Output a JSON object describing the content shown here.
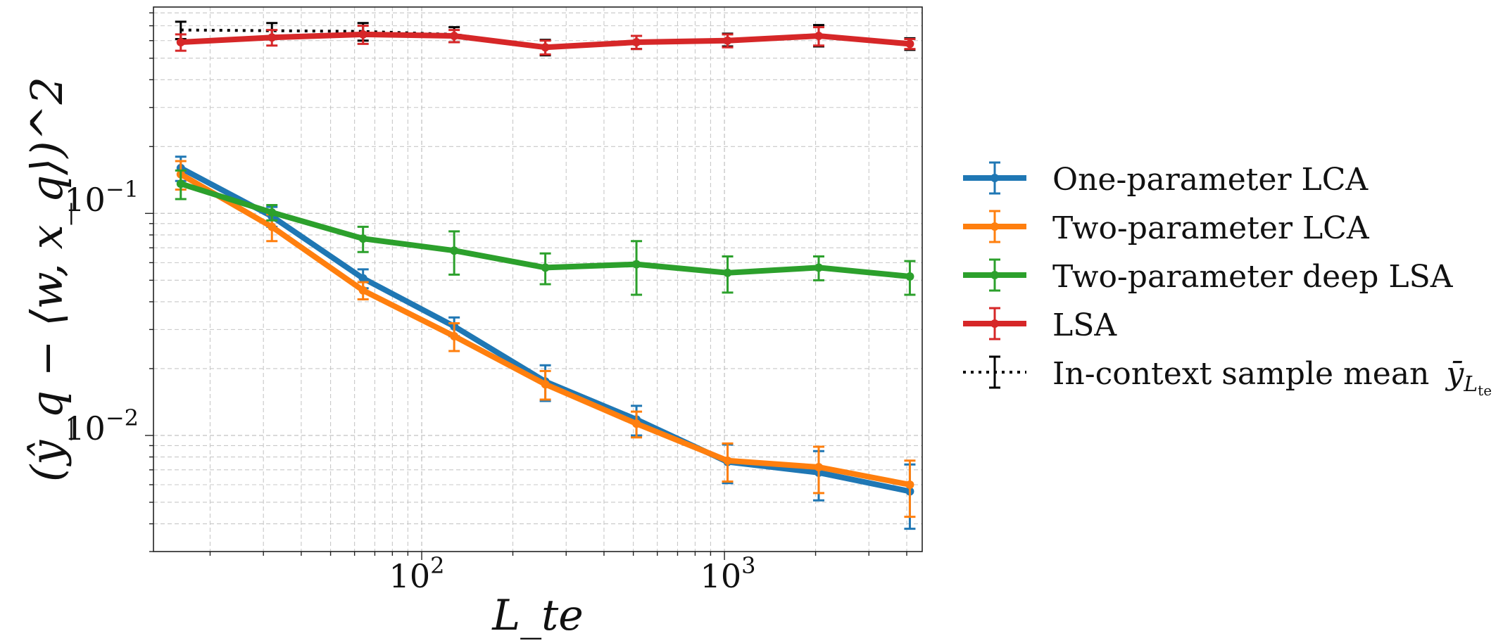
{
  "chart_data": {
    "type": "line",
    "title": "",
    "xlabel": "L_te",
    "ylabel": "(ŷ_q − ⟨w, x_q⟩)^2",
    "xscale": "log",
    "yscale": "log",
    "xlim": [
      13,
      4500
    ],
    "ylim": [
      0.003,
      0.85
    ],
    "grid": true,
    "legend_position": "outside-right",
    "x_ticks": [
      {
        "value": 100,
        "base": "10",
        "exp": "2"
      },
      {
        "value": 1000,
        "base": "10",
        "exp": "3"
      }
    ],
    "y_ticks": [
      {
        "value": 0.01,
        "base": "10",
        "exp": "−2"
      },
      {
        "value": 0.1,
        "base": "10",
        "exp": "−1"
      }
    ],
    "x": [
      16,
      32,
      64,
      128,
      256,
      512,
      1024,
      2048,
      4096
    ],
    "series": [
      {
        "name": "One-parameter LCA",
        "color": "#1f77b4",
        "line_style": "solid",
        "values": [
          0.16,
          0.097,
          0.051,
          0.031,
          0.0175,
          0.0118,
          0.0076,
          0.0068,
          0.0056
        ],
        "err": [
          0.02,
          0.01,
          0.005,
          0.003,
          0.0032,
          0.0018,
          0.0015,
          0.0017,
          0.0018
        ]
      },
      {
        "name": "Two-parameter LCA",
        "color": "#ff7f0e",
        "line_style": "solid",
        "values": [
          0.15,
          0.087,
          0.045,
          0.028,
          0.017,
          0.0113,
          0.0077,
          0.0072,
          0.006
        ],
        "err": [
          0.022,
          0.012,
          0.004,
          0.004,
          0.0025,
          0.0015,
          0.0015,
          0.0017,
          0.0017
        ]
      },
      {
        "name": "Two-parameter deep LSA",
        "color": "#2ca02c",
        "line_style": "solid",
        "values": [
          0.136,
          0.101,
          0.077,
          0.068,
          0.057,
          0.059,
          0.054,
          0.057,
          0.052
        ],
        "err": [
          0.02,
          0.008,
          0.01,
          0.015,
          0.009,
          0.016,
          0.01,
          0.007,
          0.009
        ]
      },
      {
        "name": "LSA",
        "color": "#d62728",
        "line_style": "solid",
        "values": [
          0.59,
          0.62,
          0.64,
          0.63,
          0.56,
          0.59,
          0.6,
          0.63,
          0.58
        ],
        "err": [
          0.05,
          0.05,
          0.06,
          0.04,
          0.04,
          0.04,
          0.04,
          0.06,
          0.03
        ]
      },
      {
        "name": "In-context sample mean",
        "color": "#000000",
        "line_style": "dotted",
        "legend_symbol_base": "ȳ",
        "legend_symbol_sub": "L",
        "legend_symbol_subsub": "te",
        "values": [
          0.67,
          0.665,
          0.66,
          0.64,
          0.56,
          0.59,
          0.605,
          0.635,
          0.58
        ],
        "err": [
          0.06,
          0.055,
          0.06,
          0.05,
          0.045,
          0.04,
          0.04,
          0.07,
          0.035
        ]
      }
    ]
  }
}
